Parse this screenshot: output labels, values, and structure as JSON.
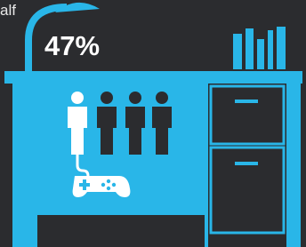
{
  "caption_fragment": "alf",
  "statistic": "47%"
}
